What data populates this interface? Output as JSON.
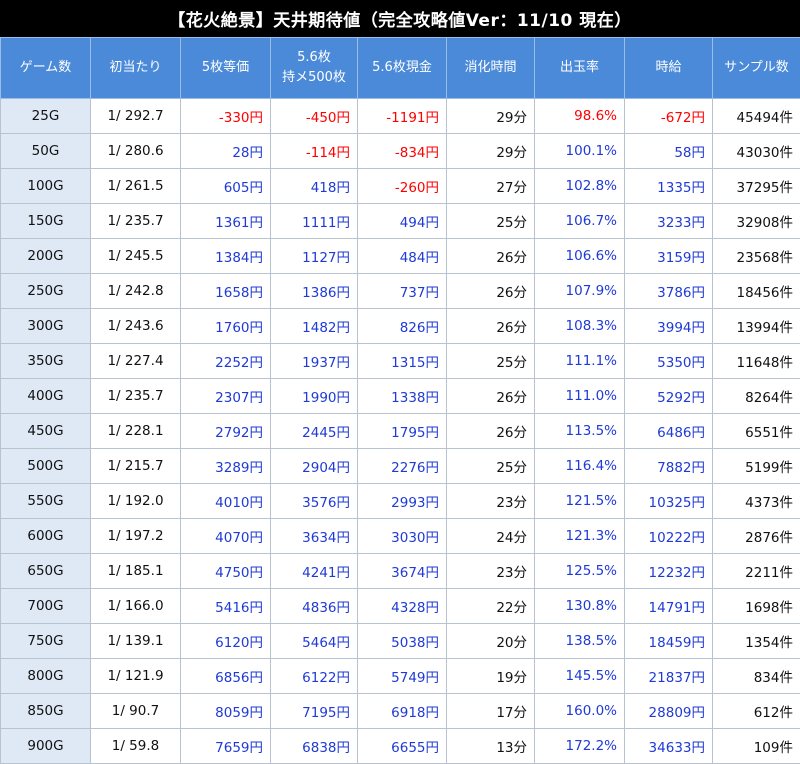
{
  "title": "【花火絶景】天井期待値（完全攻略値Ver：11/10 現在）",
  "headers": [
    [
      "ゲーム数"
    ],
    [
      "初当たり"
    ],
    [
      "5枚等価"
    ],
    [
      "5.6枚",
      "持メ500枚"
    ],
    [
      "5.6枚現金"
    ],
    [
      "消化時間"
    ],
    [
      "出玉率"
    ],
    [
      "時給"
    ],
    [
      "サンプル数"
    ]
  ],
  "colors": {
    "title_bg": "#000000",
    "header_bg": "#4a8ad8",
    "game_col_bg": "#dfe9f6",
    "negative": "#ff0000",
    "positive": "#1f3ad6"
  },
  "rows": [
    {
      "game": "25G",
      "hit": "1/ 292.7",
      "eq5": "-330円",
      "m56": "-450円",
      "cash56": "-1191円",
      "time": "29分",
      "rate": "98.6%",
      "hourly": "-672円",
      "samples": "45494件"
    },
    {
      "game": "50G",
      "hit": "1/ 280.6",
      "eq5": "28円",
      "m56": "-114円",
      "cash56": "-834円",
      "time": "29分",
      "rate": "100.1%",
      "hourly": "58円",
      "samples": "43030件"
    },
    {
      "game": "100G",
      "hit": "1/ 261.5",
      "eq5": "605円",
      "m56": "418円",
      "cash56": "-260円",
      "time": "27分",
      "rate": "102.8%",
      "hourly": "1335円",
      "samples": "37295件"
    },
    {
      "game": "150G",
      "hit": "1/ 235.7",
      "eq5": "1361円",
      "m56": "1111円",
      "cash56": "494円",
      "time": "25分",
      "rate": "106.7%",
      "hourly": "3233円",
      "samples": "32908件"
    },
    {
      "game": "200G",
      "hit": "1/ 245.5",
      "eq5": "1384円",
      "m56": "1127円",
      "cash56": "484円",
      "time": "26分",
      "rate": "106.6%",
      "hourly": "3159円",
      "samples": "23568件"
    },
    {
      "game": "250G",
      "hit": "1/ 242.8",
      "eq5": "1658円",
      "m56": "1386円",
      "cash56": "737円",
      "time": "26分",
      "rate": "107.9%",
      "hourly": "3786円",
      "samples": "18456件"
    },
    {
      "game": "300G",
      "hit": "1/ 243.6",
      "eq5": "1760円",
      "m56": "1482円",
      "cash56": "826円",
      "time": "26分",
      "rate": "108.3%",
      "hourly": "3994円",
      "samples": "13994件"
    },
    {
      "game": "350G",
      "hit": "1/ 227.4",
      "eq5": "2252円",
      "m56": "1937円",
      "cash56": "1315円",
      "time": "25分",
      "rate": "111.1%",
      "hourly": "5350円",
      "samples": "11648件"
    },
    {
      "game": "400G",
      "hit": "1/ 235.7",
      "eq5": "2307円",
      "m56": "1990円",
      "cash56": "1338円",
      "time": "26分",
      "rate": "111.0%",
      "hourly": "5292円",
      "samples": "8264件"
    },
    {
      "game": "450G",
      "hit": "1/ 228.1",
      "eq5": "2792円",
      "m56": "2445円",
      "cash56": "1795円",
      "time": "26分",
      "rate": "113.5%",
      "hourly": "6486円",
      "samples": "6551件"
    },
    {
      "game": "500G",
      "hit": "1/ 215.7",
      "eq5": "3289円",
      "m56": "2904円",
      "cash56": "2276円",
      "time": "25分",
      "rate": "116.4%",
      "hourly": "7882円",
      "samples": "5199件"
    },
    {
      "game": "550G",
      "hit": "1/ 192.0",
      "eq5": "4010円",
      "m56": "3576円",
      "cash56": "2993円",
      "time": "23分",
      "rate": "121.5%",
      "hourly": "10325円",
      "samples": "4373件"
    },
    {
      "game": "600G",
      "hit": "1/ 197.2",
      "eq5": "4070円",
      "m56": "3634円",
      "cash56": "3030円",
      "time": "24分",
      "rate": "121.3%",
      "hourly": "10222円",
      "samples": "2876件"
    },
    {
      "game": "650G",
      "hit": "1/ 185.1",
      "eq5": "4750円",
      "m56": "4241円",
      "cash56": "3674円",
      "time": "23分",
      "rate": "125.5%",
      "hourly": "12232円",
      "samples": "2211件"
    },
    {
      "game": "700G",
      "hit": "1/ 166.0",
      "eq5": "5416円",
      "m56": "4836円",
      "cash56": "4328円",
      "time": "22分",
      "rate": "130.8%",
      "hourly": "14791円",
      "samples": "1698件"
    },
    {
      "game": "750G",
      "hit": "1/ 139.1",
      "eq5": "6120円",
      "m56": "5464円",
      "cash56": "5038円",
      "time": "20分",
      "rate": "138.5%",
      "hourly": "18459円",
      "samples": "1354件"
    },
    {
      "game": "800G",
      "hit": "1/ 121.9",
      "eq5": "6856円",
      "m56": "6122円",
      "cash56": "5749円",
      "time": "19分",
      "rate": "145.5%",
      "hourly": "21837円",
      "samples": "834件"
    },
    {
      "game": "850G",
      "hit": "1/ 90.7",
      "eq5": "8059円",
      "m56": "7195円",
      "cash56": "6918円",
      "time": "17分",
      "rate": "160.0%",
      "hourly": "28809円",
      "samples": "612件"
    },
    {
      "game": "900G",
      "hit": "1/ 59.8",
      "eq5": "7659円",
      "m56": "6838円",
      "cash56": "6655円",
      "time": "13分",
      "rate": "172.2%",
      "hourly": "34633円",
      "samples": "109件"
    }
  ]
}
